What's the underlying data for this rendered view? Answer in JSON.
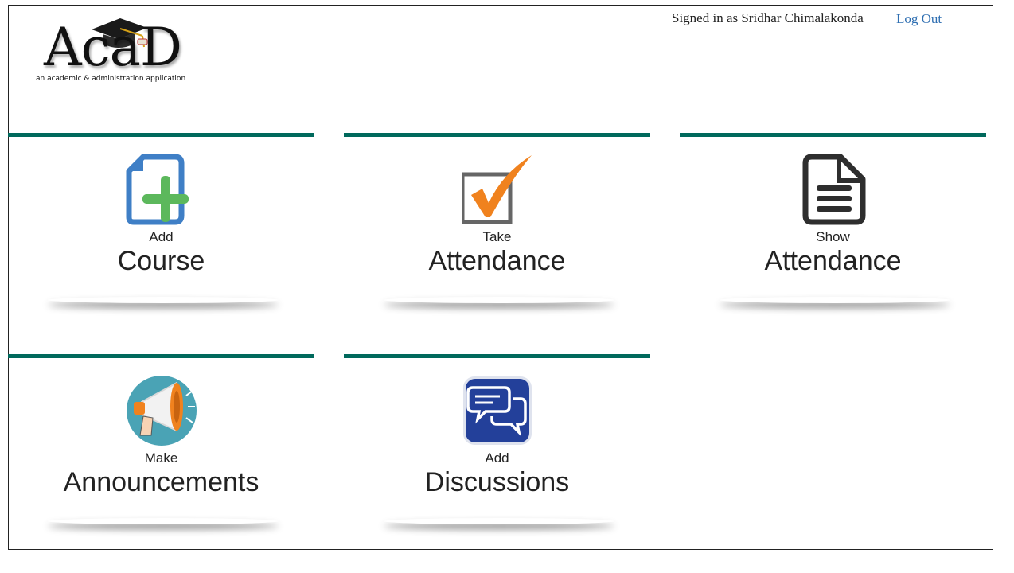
{
  "header": {
    "logo_text": "AcaD",
    "logo_tagline": "an academic & administration application",
    "signed_in_text": "Signed in as Sridhar Chimalakonda",
    "logout_label": "Log Out"
  },
  "tiles": [
    {
      "small": "Add",
      "big": "Course",
      "icon": "add-course-icon"
    },
    {
      "small": "Take",
      "big": "Attendance",
      "icon": "take-attendance-icon"
    },
    {
      "small": "Show",
      "big": "Attendance",
      "icon": "show-attendance-icon"
    },
    {
      "small": "Make",
      "big": "Announcements",
      "icon": "megaphone-icon"
    },
    {
      "small": "Add",
      "big": "Discussions",
      "icon": "discussions-icon"
    }
  ],
  "colors": {
    "tile_bar": "#00695c",
    "link": "#2f6fb2",
    "icon_blue": "#3f7fc6",
    "icon_green": "#5cb85c",
    "icon_orange": "#f0821e",
    "icon_gray": "#666666",
    "icon_dark": "#2e2e2e",
    "megaphone_bg": "#4aa3b5",
    "chat_bg": "#23409a"
  }
}
